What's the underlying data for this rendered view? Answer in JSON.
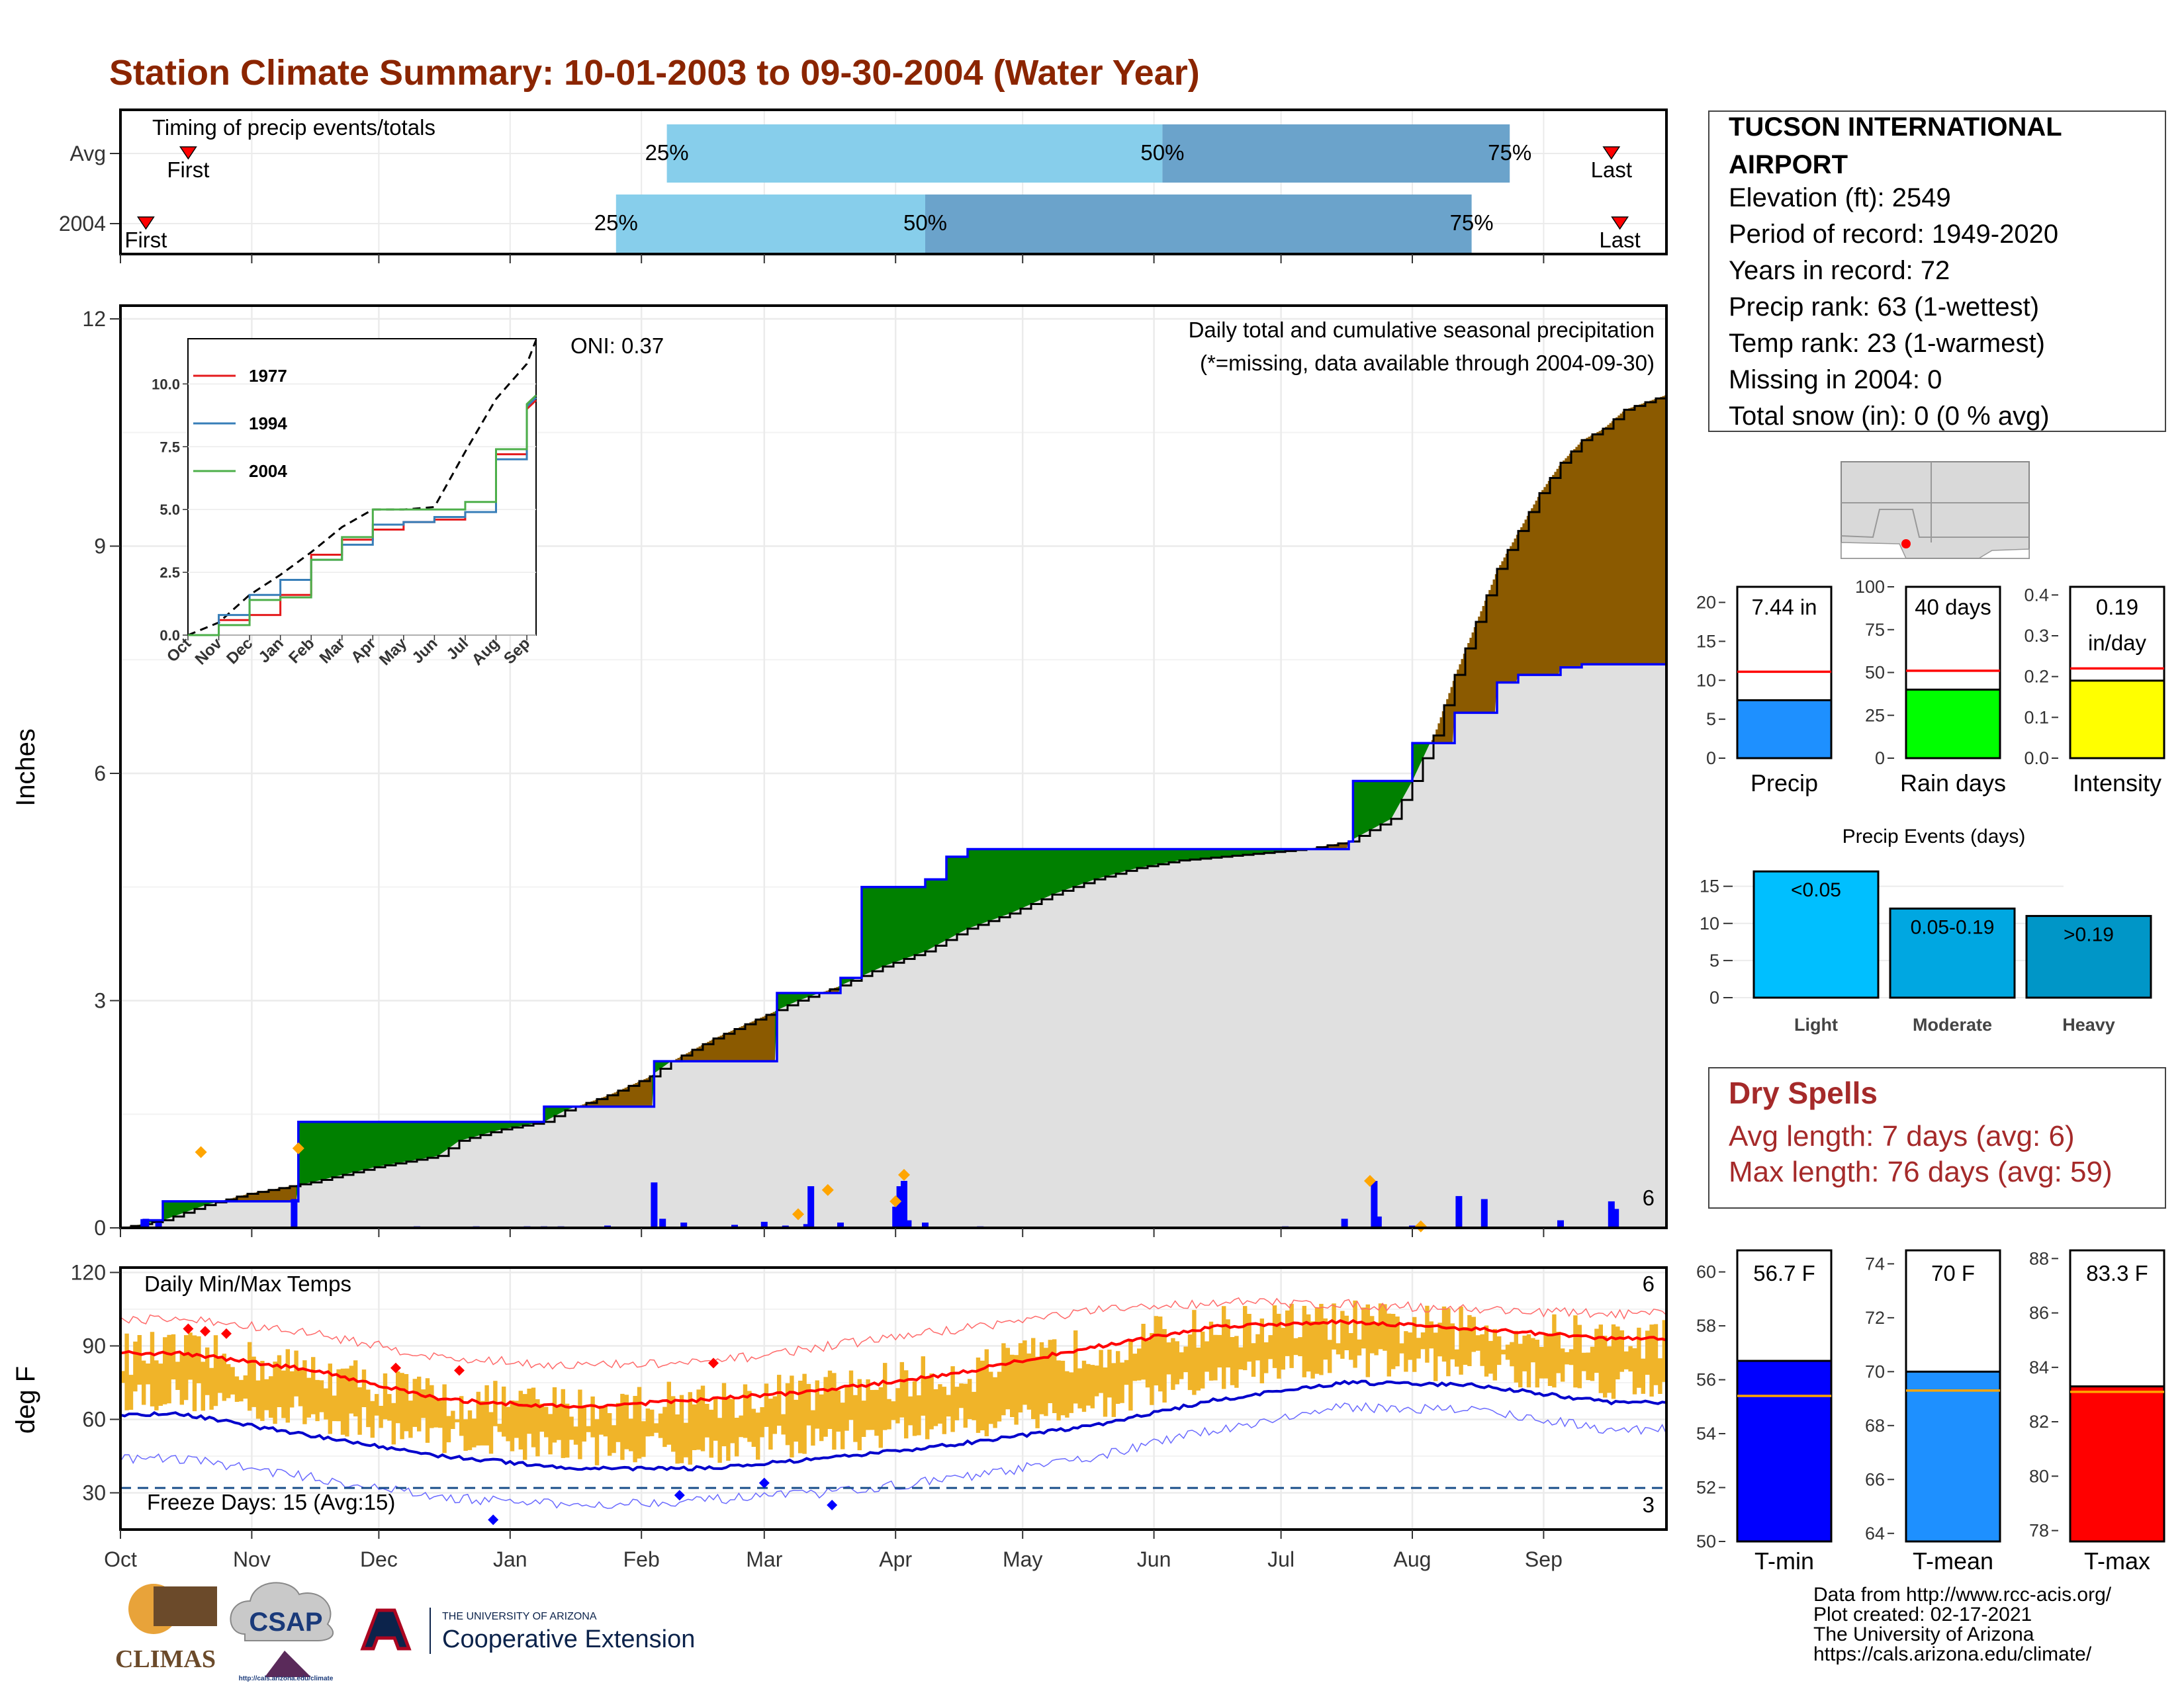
{
  "title": "Station Climate Summary: 10-01-2003 to 09-30-2004 (Water Year)",
  "months": [
    "Oct",
    "Nov",
    "Dec",
    "Jan",
    "Feb",
    "Mar",
    "Apr",
    "May",
    "Jun",
    "Jul",
    "Aug",
    "Sep"
  ],
  "timing": {
    "title": "Timing of precip events/totals",
    "rows": [
      {
        "label": "Avg",
        "first_label": "First",
        "last_label": "Last",
        "first_day": 16,
        "last_day": 352,
        "p25_day": 129,
        "p50_day": 246,
        "p75_day": 328,
        "p25_label": "25%",
        "p50_label": "50%",
        "p75_label": "75%"
      },
      {
        "label": "2004",
        "first_label": "First",
        "last_label": "Last",
        "first_day": 6,
        "last_day": 354,
        "p25_day": 117,
        "p50_day": 190,
        "p75_day": 319,
        "p25_label": "25%",
        "p50_label": "50%",
        "p75_label": "75%"
      }
    ],
    "colors": {
      "light": "#87ceeb",
      "dark": "#6ba3cb",
      "marker": "#ff0000"
    }
  },
  "precip": {
    "ylabel": "Inches",
    "yticks": [
      "0",
      "3",
      "6",
      "9",
      "12"
    ],
    "annotation_title": "Daily total and cumulative seasonal precipitation",
    "annotation_missing": "(*=missing, data available through 2004-09-30)",
    "oni": "ONI: 0.37",
    "count_label": "6",
    "colors": {
      "below": "#8b5a00",
      "above": "#008000",
      "actual_line": "#0000ff",
      "fill": "#e0e0e0",
      "orange": "#ffa500"
    }
  },
  "inset": {
    "yticks": [
      "0.0",
      "2.5",
      "5.0",
      "7.5",
      "10.0"
    ],
    "months": [
      "Oct",
      "Nov",
      "Dec",
      "Jan",
      "Feb",
      "Mar",
      "Apr",
      "May",
      "Jun",
      "Jul",
      "Aug",
      "Sep"
    ],
    "legend": [
      {
        "name": "1977",
        "color": "#e41a1c"
      },
      {
        "name": "1994",
        "color": "#377eb8"
      },
      {
        "name": "2004",
        "color": "#4daf4a"
      }
    ]
  },
  "temps": {
    "ylabel": "deg F",
    "yticks": [
      "30",
      "60",
      "90",
      "120"
    ],
    "title": "Daily Min/Max Temps",
    "freeze": "Freeze Days: 15 (Avg:15)",
    "count_high": "6",
    "count_low": "3",
    "colors": {
      "bar": "#f0b429",
      "max_avg": "#ff0000",
      "min_avg": "#0000cc"
    }
  },
  "station": {
    "name_line1": "TUCSON INTERNATIONAL",
    "name_line2": "AIRPORT",
    "lines": [
      "Elevation (ft): 2549",
      "Period of record: 1949-2020",
      "Years in record: 72",
      "Precip rank: 63 (1-wettest)",
      "Temp rank: 23 (1-warmest)",
      "Missing in 2004: 0",
      "Total snow (in): 0 (0 % avg)"
    ]
  },
  "mini_bars": [
    {
      "label": "Precip",
      "value_text": "7.44 in",
      "value_text2": "",
      "value": 7.44,
      "avg": 11.1,
      "ymax": 22,
      "yticks": [
        "0",
        "5",
        "10",
        "15",
        "20"
      ],
      "tickvals": [
        0,
        5,
        10,
        15,
        20
      ],
      "color": "#1e90ff"
    },
    {
      "label": "Rain days",
      "value_text": "40 days",
      "value_text2": "",
      "value": 40,
      "avg": 51,
      "ymax": 100,
      "yticks": [
        "0",
        "25",
        "50",
        "75",
        "100"
      ],
      "tickvals": [
        0,
        25,
        50,
        75,
        100
      ],
      "color": "#00ff00"
    },
    {
      "label": "Intensity",
      "value_text": "0.19",
      "value_text2": "in/day",
      "value": 0.19,
      "avg": 0.22,
      "ymax": 0.42,
      "yticks": [
        "0.0",
        "0.1",
        "0.2",
        "0.3",
        "0.4"
      ],
      "tickvals": [
        0,
        0.1,
        0.2,
        0.3,
        0.4
      ],
      "color": "#ffff00"
    }
  ],
  "precip_events": {
    "title": "Precip Events (days)",
    "yticks": [
      "0",
      "5",
      "10",
      "15"
    ],
    "bars": [
      {
        "label": "Light",
        "range": "<0.05",
        "value": 17,
        "color": "#00bfff"
      },
      {
        "label": "Moderate",
        "range": "0.05-0.19",
        "value": 12,
        "color": "#00a7e1"
      },
      {
        "label": "Heavy",
        "range": ">0.19",
        "value": 11,
        "color": "#0096c7"
      }
    ]
  },
  "dry_spells": {
    "title": "Dry Spells",
    "avg": "Avg length: 7 days (avg: 6)",
    "max": "Max length: 76 days (avg: 59)"
  },
  "temp_bars": [
    {
      "label": "T-min",
      "value_text": "56.7 F",
      "value": 56.7,
      "avg": 55.4,
      "ymin": 50,
      "ymax": 60.8,
      "yticks": [
        "50",
        "52",
        "54",
        "56",
        "58",
        "60"
      ],
      "tickvals": [
        50,
        52,
        54,
        56,
        58,
        60
      ],
      "color": "#0000ff"
    },
    {
      "label": "T-mean",
      "value_text": "70 F",
      "value": 70.0,
      "avg": 69.3,
      "ymin": 63.7,
      "ymax": 74.5,
      "yticks": [
        "64",
        "66",
        "68",
        "70",
        "72",
        "74"
      ],
      "tickvals": [
        64,
        66,
        68,
        70,
        72,
        74
      ],
      "color": "#1e90ff"
    },
    {
      "label": "T-max",
      "value_text": "83.3 F",
      "value": 83.3,
      "avg": 83.1,
      "ymin": 77.6,
      "ymax": 88.3,
      "yticks": [
        "78",
        "80",
        "82",
        "84",
        "86",
        "88"
      ],
      "tickvals": [
        78,
        80,
        82,
        84,
        86,
        88
      ],
      "color": "#ff0000"
    }
  ],
  "footer": {
    "lines": [
      "Data from http://www.rcc-acis.org/",
      "Plot created: 02-17-2021",
      "The University of Arizona",
      "https://cals.arizona.edu/climate/"
    ]
  },
  "logos": {
    "climas": "CLIMAS",
    "csap": "CSAP",
    "csap_url": "http://cals.arizona.edu/climate",
    "ua_small": "THE UNIVERSITY OF ARIZONA",
    "ua_big": "Cooperative Extension"
  },
  "chart_data": [
    {
      "type": "area",
      "title": "Daily total and cumulative seasonal precipitation",
      "ylabel": "Inches",
      "ylim": [
        0,
        12
      ],
      "x_unit": "day of water year (Oct 1 = 0)",
      "series": [
        {
          "name": "",
          "x": [
            0,
            10,
            20,
            30,
            45,
            60,
            75,
            80,
            90,
            100,
            105,
            115,
            125,
            130,
            140,
            150,
            160,
            170,
            180,
            190,
            200,
            210,
            220,
            230,
            240,
            250,
            260,
            270,
            280,
            290,
            300,
            305,
            310,
            315,
            320,
            325,
            330,
            335,
            340,
            345,
            350,
            355,
            365
          ],
          "values": [
            0.0,
            0.1,
            0.3,
            0.45,
            0.6,
            0.8,
            0.95,
            1.15,
            1.3,
            1.4,
            1.55,
            1.75,
            2.0,
            2.2,
            2.5,
            2.75,
            3.0,
            3.2,
            3.45,
            3.65,
            3.95,
            4.15,
            4.4,
            4.6,
            4.75,
            4.85,
            4.9,
            4.95,
            5.0,
            5.1,
            5.4,
            5.9,
            6.5,
            7.3,
            8.0,
            8.7,
            9.2,
            9.7,
            10.1,
            10.4,
            10.55,
            10.8,
            11.0
          ]
        },
        {
          "name": "",
          "x": [
            0,
            5,
            10,
            40,
            42,
            60,
            75,
            100,
            110,
            125,
            126,
            150,
            155,
            160,
            170,
            175,
            185,
            190,
            195,
            200,
            210,
            283,
            290,
            291,
            300,
            305,
            315,
            320,
            325,
            330,
            335,
            340,
            345,
            365
          ],
          "values": [
            0.0,
            0.1,
            0.35,
            0.35,
            1.4,
            1.4,
            1.4,
            1.6,
            1.6,
            1.6,
            2.2,
            2.2,
            3.1,
            3.1,
            3.3,
            4.5,
            4.5,
            4.6,
            4.9,
            5.0,
            5.0,
            5.0,
            5.1,
            5.9,
            5.9,
            6.4,
            6.8,
            6.8,
            7.2,
            7.3,
            7.3,
            7.4,
            7.44,
            7.44
          ]
        }
      ]
    },
    {
      "type": "line",
      "x": [
        "Oct",
        "Nov",
        "Dec",
        "Jan",
        "Feb",
        "Mar",
        "Apr",
        "May",
        "Jun",
        "Jul",
        "Aug",
        "Sep"
      ],
      "ylim": [
        0,
        11.8
      ],
      "series": [
        {
          "name": "",
          "values": [
            0.0,
            0.5,
            1.6,
            2.4,
            3.3,
            4.3,
            5.0,
            5.0,
            5.1,
            7.3,
            9.4,
            10.8
          ]
        },
        {
          "name": "1977",
          "values": [
            0.0,
            0.6,
            0.8,
            1.6,
            3.2,
            3.8,
            4.2,
            4.5,
            4.6,
            4.9,
            7.2,
            9.0
          ]
        },
        {
          "name": "1994",
          "values": [
            0.0,
            0.8,
            1.6,
            2.2,
            3.0,
            3.6,
            4.4,
            4.5,
            4.7,
            4.9,
            7.0,
            9.1
          ]
        },
        {
          "name": "2004",
          "values": [
            0.0,
            0.4,
            1.4,
            1.5,
            3.0,
            3.9,
            5.0,
            5.0,
            5.0,
            5.3,
            7.4,
            9.2
          ]
        }
      ]
    },
    {
      "type": "line",
      "title": "Daily Min/Max Temps",
      "ylabel": "deg F",
      "ylim": [
        15,
        120
      ],
      "x": [
        "Oct",
        "Nov",
        "Dec",
        "Jan",
        "Feb",
        "Mar",
        "Apr",
        "May",
        "Jun",
        "Jul",
        "Aug",
        "Sep"
      ],
      "series": [
        {
          "name": "",
          "values": [
            87,
            80,
            68,
            65,
            68,
            72,
            79,
            89,
            98,
            100,
            97,
            93
          ]
        },
        {
          "name": "",
          "values": [
            62,
            53,
            45,
            40,
            40,
            44,
            50,
            57,
            68,
            75,
            74,
            67
          ]
        },
        {
          "name": "",
          "values": [
            101,
            95,
            85,
            82,
            83,
            90,
            97,
            104,
            108,
            107,
            105,
            103
          ]
        },
        {
          "name": "",
          "values": [
            44,
            36,
            28,
            25,
            27,
            30,
            36,
            44,
            56,
            65,
            64,
            56
          ]
        }
      ]
    },
    {
      "type": "bar",
      "title": "Precip Events (days)",
      "categories": [
        "Light",
        "Moderate",
        "Heavy"
      ],
      "values": [
        17,
        12,
        11
      ]
    },
    {
      "type": "bar",
      "categories": [
        "Precip",
        "Rain days",
        "Intensity",
        "T-min",
        "T-mean",
        "T-max"
      ],
      "values": [
        7.44,
        40,
        0.19,
        56.7,
        70.0,
        83.3
      ]
    }
  ]
}
